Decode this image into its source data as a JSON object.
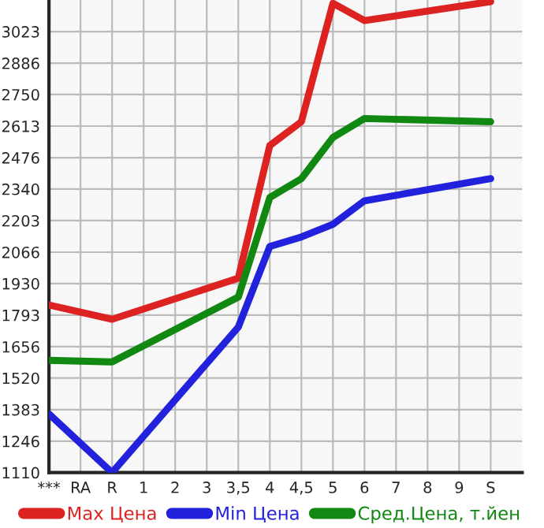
{
  "chart_data": {
    "type": "line",
    "categories": [
      "***",
      "RA",
      "R",
      "1",
      "2",
      "3",
      "3,5",
      "4",
      "4,5",
      "5",
      "6",
      "7",
      "8",
      "9",
      "S"
    ],
    "series": [
      {
        "name": "Max Цена",
        "color": "#dd2222",
        "values": [
          1837,
          null,
          1775,
          null,
          null,
          null,
          1953,
          2529,
          2632,
          3146,
          3071,
          null,
          null,
          null,
          3153
        ]
      },
      {
        "name": "Min Цена",
        "color": "#2222dd",
        "values": [
          1364,
          null,
          1110,
          null,
          null,
          null,
          1741,
          2091,
          2132,
          2187,
          2289,
          null,
          null,
          null,
          2385
        ]
      },
      {
        "name": "Сред.Цена, т.йен",
        "color": "#118811",
        "values": [
          1597,
          null,
          1590,
          null,
          null,
          null,
          1871,
          2303,
          2385,
          2564,
          2646,
          null,
          null,
          null,
          2632
        ]
      }
    ],
    "ylim": [
      1110,
      3160
    ],
    "yticks": [
      1110,
      1246,
      1383,
      1520,
      1656,
      1793,
      1930,
      2066,
      2203,
      2340,
      2476,
      2613,
      2750,
      2886,
      3023
    ],
    "grid": true,
    "legend": "bottom",
    "marker": "none",
    "line_style": "solid"
  }
}
